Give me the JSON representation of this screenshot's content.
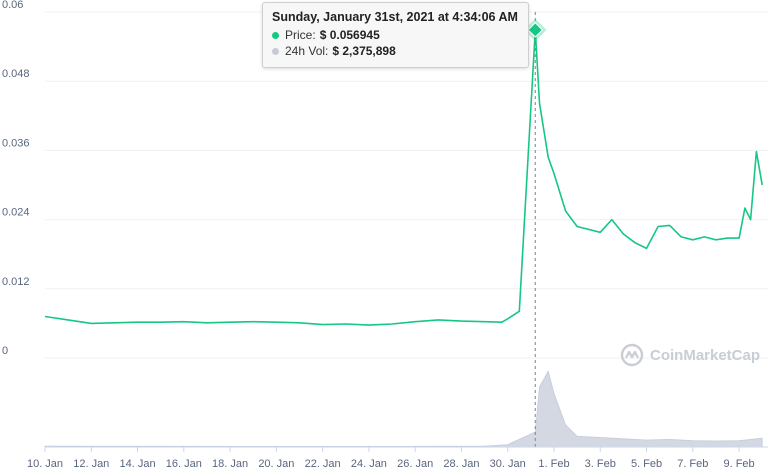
{
  "chart_data": {
    "type": "line",
    "y_ticks": [
      "0",
      "0.012",
      "0.024",
      "0.036",
      "0.048",
      "0.06"
    ],
    "ylim": [
      0,
      0.06
    ],
    "x_ticks": [
      "10. Jan",
      "12. Jan",
      "14. Jan",
      "16. Jan",
      "18. Jan",
      "20. Jan",
      "22. Jan",
      "24. Jan",
      "26. Jan",
      "28. Jan",
      "30. Jan",
      "1. Feb",
      "3. Feb",
      "5. Feb",
      "7. Feb",
      "9. Feb"
    ],
    "grid": true,
    "series": [
      {
        "name": "Price",
        "color": "#16c784",
        "x": [
          "Jan 10",
          "Jan 11",
          "Jan 12",
          "Jan 13",
          "Jan 14",
          "Jan 15",
          "Jan 16",
          "Jan 17",
          "Jan 18",
          "Jan 19",
          "Jan 20",
          "Jan 21",
          "Jan 22",
          "Jan 23",
          "Jan 24",
          "Jan 25",
          "Jan 26",
          "Jan 27",
          "Jan 28",
          "Jan 29",
          "Jan 29 18:00",
          "Jan 30",
          "Jan 30 12:00",
          "Jan 31 04:34",
          "Jan 31 09:00",
          "Jan 31 18:00",
          "Feb 1",
          "Feb 1 12:00",
          "Feb 2",
          "Feb 3",
          "Feb 3 12:00",
          "Feb 4",
          "Feb 4 12:00",
          "Feb 5",
          "Feb 5 12:00",
          "Feb 6",
          "Feb 6 12:00",
          "Feb 7",
          "Feb 7 12:00",
          "Feb 8",
          "Feb 8 12:00",
          "Feb 9",
          "Feb 9 06:00",
          "Feb 9 12:00",
          "Feb 9 18:00",
          "Feb 10"
        ],
        "values": [
          0.0072,
          0.0066,
          0.006,
          0.0061,
          0.0062,
          0.0062,
          0.0063,
          0.0061,
          0.0062,
          0.0063,
          0.0062,
          0.0061,
          0.0058,
          0.0059,
          0.0057,
          0.0059,
          0.0063,
          0.0066,
          0.0064,
          0.0063,
          0.0062,
          0.0068,
          0.0081,
          0.0569,
          0.0442,
          0.0348,
          0.032,
          0.0255,
          0.0228,
          0.0218,
          0.024,
          0.0215,
          0.02,
          0.019,
          0.0228,
          0.023,
          0.021,
          0.0205,
          0.021,
          0.0205,
          0.0208,
          0.0208,
          0.026,
          0.024,
          0.0358,
          0.03
        ]
      },
      {
        "name": "24h Vol",
        "color": "#d3d8e3",
        "x": [
          "Jan 10",
          "Jan 15",
          "Jan 20",
          "Jan 25",
          "Jan 29",
          "Jan 30",
          "Jan 31 04:34",
          "Jan 31 09:00",
          "Jan 31 18:00",
          "Feb 1",
          "Feb 1 12:00",
          "Feb 2",
          "Feb 3",
          "Feb 4",
          "Feb 5",
          "Feb 6",
          "Feb 7",
          "Feb 8",
          "Feb 9",
          "Feb 10"
        ],
        "values": [
          120000,
          110000,
          100000,
          95000,
          150000,
          380000,
          2375898,
          9500000,
          12000000,
          8500000,
          3500000,
          1700000,
          1500000,
          1300000,
          1100000,
          1200000,
          1000000,
          950000,
          1000000,
          1400000
        ]
      }
    ]
  },
  "tooltip": {
    "title": "Sunday, January 31st, 2021 at 4:34:06 AM",
    "price_label": "Price:",
    "price_value": "$ 0.056945",
    "volume_label": "24h Vol:",
    "volume_value": "$ 2,375,898"
  },
  "watermark": {
    "text": "CoinMarketCap",
    "icon": "coinmarketcap-logo-icon"
  }
}
